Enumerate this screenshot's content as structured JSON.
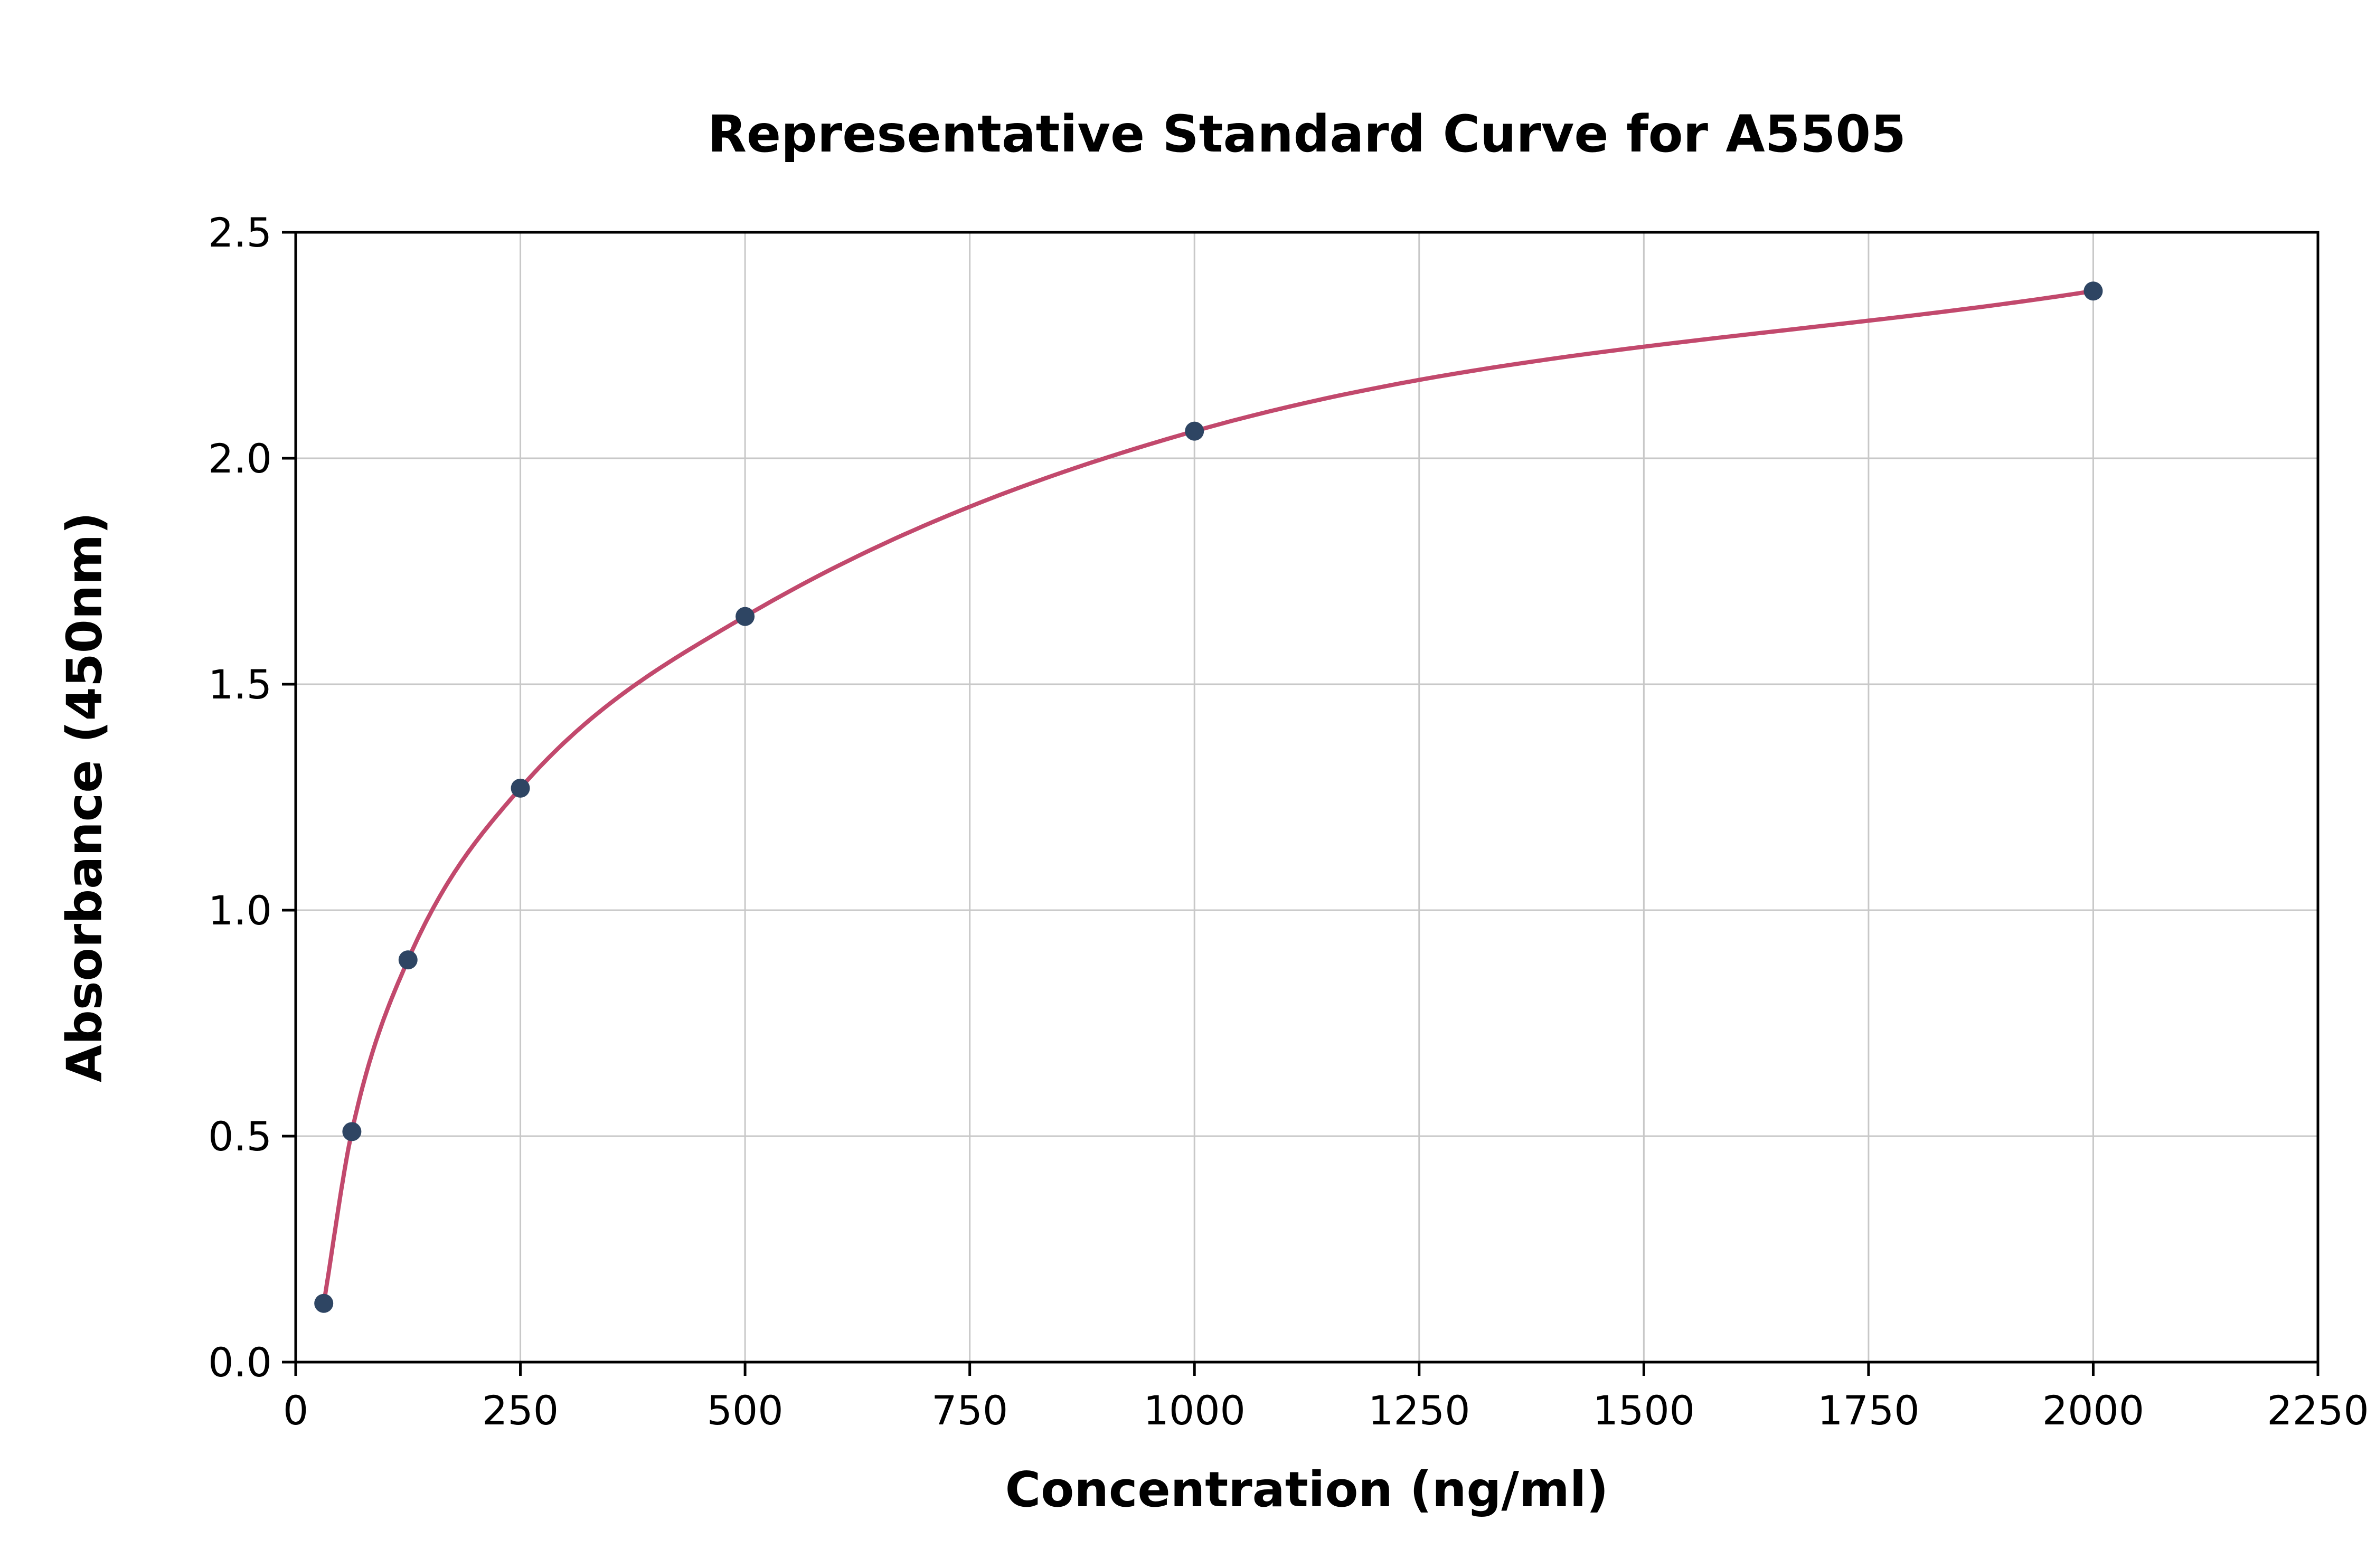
{
  "chart_data": {
    "type": "scatter",
    "title": "Representative Standard Curve for A5505",
    "xlabel": "Concentration (ng/ml)",
    "ylabel": "Absorbance (450nm)",
    "xlim": [
      0,
      2250
    ],
    "ylim": [
      0,
      2.5
    ],
    "xticks": [
      0,
      250,
      500,
      750,
      1000,
      1250,
      1500,
      1750,
      2000,
      2250
    ],
    "xtick_labels": [
      "0",
      "250",
      "500",
      "750",
      "1000",
      "1250",
      "1500",
      "1750",
      "2000",
      "2250"
    ],
    "yticks": [
      0.0,
      0.5,
      1.0,
      1.5,
      2.0,
      2.5
    ],
    "ytick_labels": [
      "0.0",
      "0.5",
      "1.0",
      "1.5",
      "2.0",
      "2.5"
    ],
    "grid": true,
    "legend": "none",
    "points": [
      {
        "x": 31.25,
        "y": 0.13
      },
      {
        "x": 62.5,
        "y": 0.51
      },
      {
        "x": 125,
        "y": 0.89
      },
      {
        "x": 250,
        "y": 1.27
      },
      {
        "x": 500,
        "y": 1.65
      },
      {
        "x": 1000,
        "y": 2.06
      },
      {
        "x": 2000,
        "y": 2.37
      }
    ],
    "series": [
      {
        "name": "fitted standard curve",
        "type": "line"
      },
      {
        "name": "standard data points",
        "type": "scatter"
      }
    ],
    "colors": {
      "curve": "#c2496d",
      "points": "#2e4563",
      "grid": "#c8c8c8",
      "axis": "#000000",
      "background": "#ffffff"
    }
  }
}
